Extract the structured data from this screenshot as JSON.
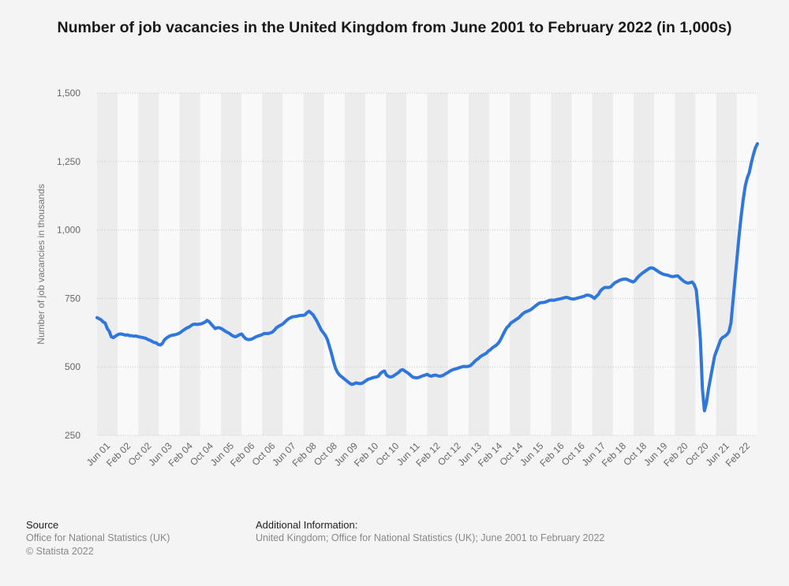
{
  "chart_data": {
    "type": "line",
    "title": "Number of job vacancies in the United Kingdom from June 2001 to February 2022 (in 1,000s)",
    "ylabel": "Number of job vacancies in thousands",
    "xlabel": "",
    "ylim": [
      250,
      1500
    ],
    "yticks": [
      "250",
      "500",
      "750",
      "1,000",
      "1,250",
      "1,500"
    ],
    "grid": true,
    "line_color": "#2f76dd",
    "xtick_labels": [
      "Jun 01",
      "Feb 02",
      "Oct 02",
      "Jun 03",
      "Feb 04",
      "Oct 04",
      "Jun 05",
      "Feb 06",
      "Oct 06",
      "Jun 07",
      "Feb 08",
      "Oct 08",
      "Jun 09",
      "Feb 10",
      "Oct 10",
      "Jun 11",
      "Feb 12",
      "Oct 12",
      "Jun 13",
      "Feb 14",
      "Oct 14",
      "Jun 15",
      "Feb 16",
      "Oct 16",
      "Jun 17",
      "Feb 18",
      "Oct 18",
      "Jun 19",
      "Feb 20",
      "Oct 20",
      "Jun 21",
      "Feb 22"
    ],
    "series": [
      {
        "values": [
          680,
          676,
          672,
          664,
          660,
          640,
          630,
          610,
          607,
          612,
          617,
          620,
          620,
          618,
          616,
          617,
          614,
          614,
          612,
          613,
          611,
          609,
          608,
          606,
          604,
          600,
          597,
          593,
          589,
          588,
          582,
          580,
          585,
          598,
          605,
          610,
          614,
          616,
          617,
          619,
          622,
          626,
          632,
          637,
          642,
          645,
          650,
          655,
          656,
          655,
          656,
          657,
          660,
          664,
          670,
          665,
          656,
          648,
          640,
          643,
          643,
          640,
          635,
          630,
          626,
          622,
          616,
          612,
          610,
          614,
          618,
          620,
          610,
          603,
          600,
          600,
          602,
          606,
          610,
          613,
          615,
          618,
          622,
          622,
          622,
          624,
          627,
          634,
          643,
          648,
          652,
          656,
          663,
          670,
          676,
          680,
          683,
          684,
          685,
          687,
          688,
          688,
          690,
          698,
          703,
          697,
          690,
          678,
          665,
          650,
          635,
          625,
          615,
          600,
          575,
          550,
          520,
          495,
          480,
          470,
          464,
          458,
          452,
          446,
          440,
          436,
          438,
          442,
          440,
          439,
          440,
          445,
          450,
          455,
          457,
          460,
          462,
          463,
          466,
          476,
          482,
          485,
          470,
          465,
          463,
          465,
          470,
          475,
          480,
          488,
          490,
          485,
          480,
          475,
          468,
          462,
          461,
          460,
          462,
          465,
          468,
          470,
          473,
          468,
          466,
          469,
          470,
          468,
          466,
          467,
          470,
          475,
          479,
          484,
          488,
          491,
          493,
          495,
          498,
          500,
          502,
          501,
          502,
          504,
          510,
          518,
          525,
          530,
          537,
          542,
          546,
          550,
          558,
          563,
          570,
          575,
          580,
          588,
          600,
          615,
          630,
          643,
          650,
          660,
          665,
          670,
          675,
          680,
          688,
          695,
          700,
          703,
          706,
          710,
          716,
          722,
          728,
          733,
          735,
          735,
          737,
          740,
          743,
          744,
          743,
          745,
          747,
          748,
          750,
          752,
          754,
          753,
          750,
          748,
          748,
          750,
          752,
          754,
          756,
          758,
          762,
          762,
          760,
          756,
          750,
          758,
          765,
          778,
          785,
          790,
          790,
          790,
          792,
          800,
          807,
          811,
          815,
          818,
          820,
          821,
          820,
          816,
          813,
          810,
          815,
          825,
          833,
          839,
          845,
          850,
          855,
          860,
          862,
          860,
          855,
          850,
          845,
          841,
          838,
          836,
          835,
          832,
          830,
          830,
          832,
          832,
          825,
          818,
          812,
          808,
          806,
          808,
          810,
          800,
          780,
          700,
          600,
          420,
          340,
          370,
          420,
          460,
          500,
          540,
          560,
          580,
          600,
          608,
          612,
          618,
          628,
          660,
          740,
          820,
          900,
          980,
          1050,
          1110,
          1160,
          1190,
          1210,
          1245,
          1275,
          1300,
          1315
        ]
      }
    ]
  },
  "footer": {
    "source_heading": "Source",
    "source_lines": [
      "Office for National Statistics (UK)",
      "© Statista 2022"
    ],
    "info_heading": "Additional Information:",
    "info_text": "United Kingdom; Office for National Statistics (UK); June 2001 to February 2022"
  }
}
